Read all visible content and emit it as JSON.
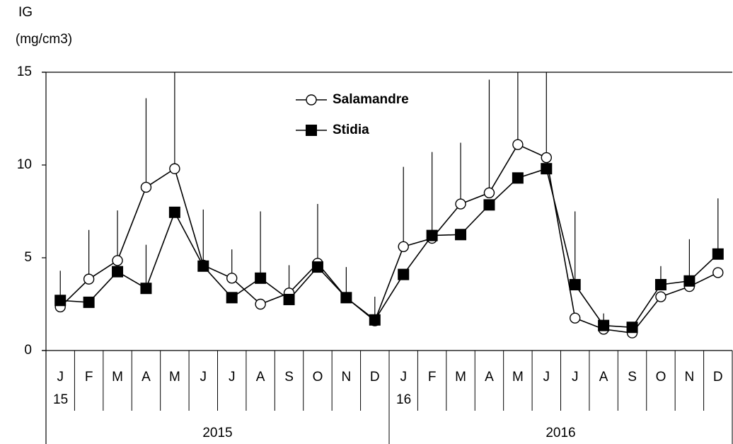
{
  "chart_data": {
    "type": "line",
    "ylabel": [
      "IG",
      "(mg/cm3)"
    ],
    "categories": [
      "J",
      "F",
      "M",
      "A",
      "M",
      "J",
      "J",
      "A",
      "S",
      "O",
      "N",
      "D",
      "J",
      "F",
      "M",
      "A",
      "M",
      "J",
      "J",
      "A",
      "S",
      "O",
      "N",
      "D"
    ],
    "category_sublabels": [
      "15",
      null,
      null,
      null,
      null,
      null,
      null,
      null,
      null,
      null,
      null,
      null,
      "16",
      null,
      null,
      null,
      null,
      null,
      null,
      null,
      null,
      null,
      null,
      null
    ],
    "groups": [
      "2015",
      "2016"
    ],
    "series": [
      {
        "name": "Salamandre",
        "color": "#ffffff",
        "marker": "circle",
        "values": [
          2.35,
          3.85,
          4.85,
          8.8,
          9.8,
          4.6,
          3.9,
          2.5,
          3.1,
          4.7,
          2.85,
          1.6,
          5.6,
          6.05,
          7.9,
          8.5,
          11.1,
          10.4,
          1.75,
          1.15,
          0.95,
          2.9,
          3.45,
          4.2
        ],
        "errors": [
          null,
          2.65,
          2.7,
          4.8,
          5.5,
          3.0,
          1.55,
          null,
          1.5,
          3.2,
          1.65,
          1.3,
          4.3,
          null,
          3.3,
          6.1,
          4.5,
          5.0,
          null,
          null,
          null,
          null,
          null,
          null
        ]
      },
      {
        "name": "Stidia",
        "color": "#000000",
        "marker": "square",
        "values": [
          2.7,
          2.6,
          4.25,
          3.35,
          7.45,
          4.55,
          2.85,
          3.9,
          2.75,
          4.5,
          2.85,
          1.65,
          4.1,
          6.2,
          6.25,
          7.85,
          9.3,
          9.8,
          3.55,
          1.35,
          1.25,
          3.55,
          3.75,
          5.2
        ],
        "errors": [
          1.6,
          null,
          null,
          2.35,
          null,
          null,
          null,
          3.6,
          null,
          null,
          null,
          null,
          null,
          4.5,
          null,
          null,
          null,
          null,
          3.95,
          0.65,
          null,
          1.0,
          2.25,
          3.0
        ]
      }
    ],
    "ylim": [
      0,
      15
    ],
    "yticks": [
      0,
      5,
      10,
      15
    ]
  }
}
